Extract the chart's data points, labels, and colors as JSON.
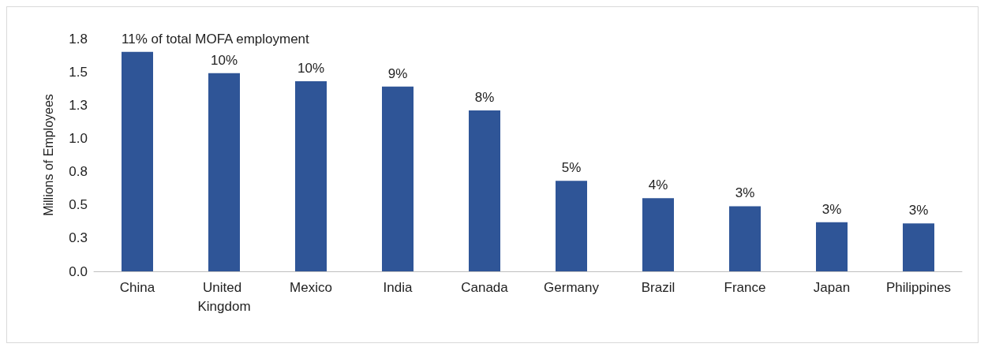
{
  "chart_data": {
    "type": "bar",
    "ylabel": "Millions of Employees",
    "categories": [
      "China",
      "United Kingdom",
      "Mexico",
      "India",
      "Canada",
      "Germany",
      "Brazil",
      "France",
      "Japan",
      "Philippines"
    ],
    "values": [
      1.65,
      1.49,
      1.43,
      1.39,
      1.21,
      0.68,
      0.55,
      0.49,
      0.37,
      0.36
    ],
    "annotations": [
      {
        "text": "11% of total MOFA employment",
        "x": "China",
        "y": 1.65
      },
      {
        "text": "10%",
        "x": "United Kingdom",
        "y": 1.49
      },
      {
        "text": "10%",
        "x": "Mexico",
        "y": 1.43
      },
      {
        "text": "9%",
        "x": "India",
        "y": 1.39
      },
      {
        "text": "8%",
        "x": "Canada",
        "y": 1.21
      },
      {
        "text": "5%",
        "x": "Germany",
        "y": 0.68
      },
      {
        "text": "4%",
        "x": "Brazil",
        "y": 0.55
      },
      {
        "text": "3%",
        "x": "France",
        "y": 0.49
      },
      {
        "text": "3%",
        "x": "Japan",
        "y": 0.37
      },
      {
        "text": "3%",
        "x": "Philippines",
        "y": 0.36
      }
    ],
    "color": "#2f5597",
    "ylim": [
      0,
      1.75
    ],
    "yticks": [
      {
        "value": 0,
        "label": "0.0"
      },
      {
        "value": 0.25,
        "label": "0.3"
      },
      {
        "value": 0.5,
        "label": "0.5"
      },
      {
        "value": 0.75,
        "label": "0.8"
      },
      {
        "value": 1,
        "label": "1.0"
      },
      {
        "value": 1.25,
        "label": "1.3"
      },
      {
        "value": 1.5,
        "label": "1.5"
      },
      {
        "value": 1.75,
        "label": "1.8"
      }
    ],
    "grid": false
  }
}
